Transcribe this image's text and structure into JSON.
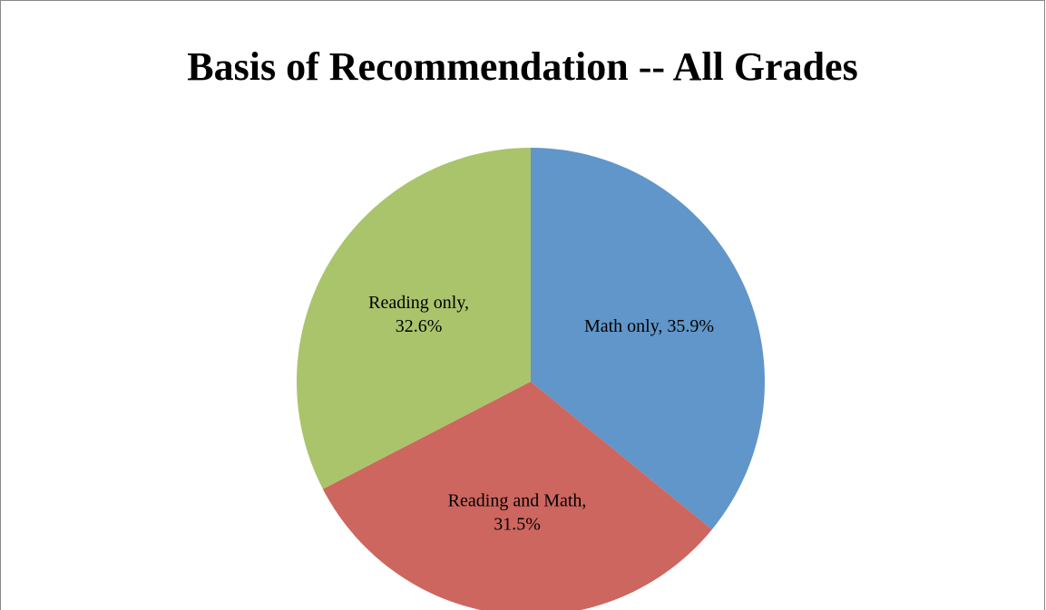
{
  "chart_data": {
    "type": "pie",
    "title": "Basis of Recommendation -- All Grades",
    "values": [
      35.9,
      31.5,
      32.6
    ],
    "value_labels": [
      "Math only, 35.9%",
      "Reading and Math,\n31.5%",
      "Reading only,\n32.6%"
    ],
    "colors": [
      "#6096c9",
      "#cd665f",
      "#aac46c"
    ]
  }
}
